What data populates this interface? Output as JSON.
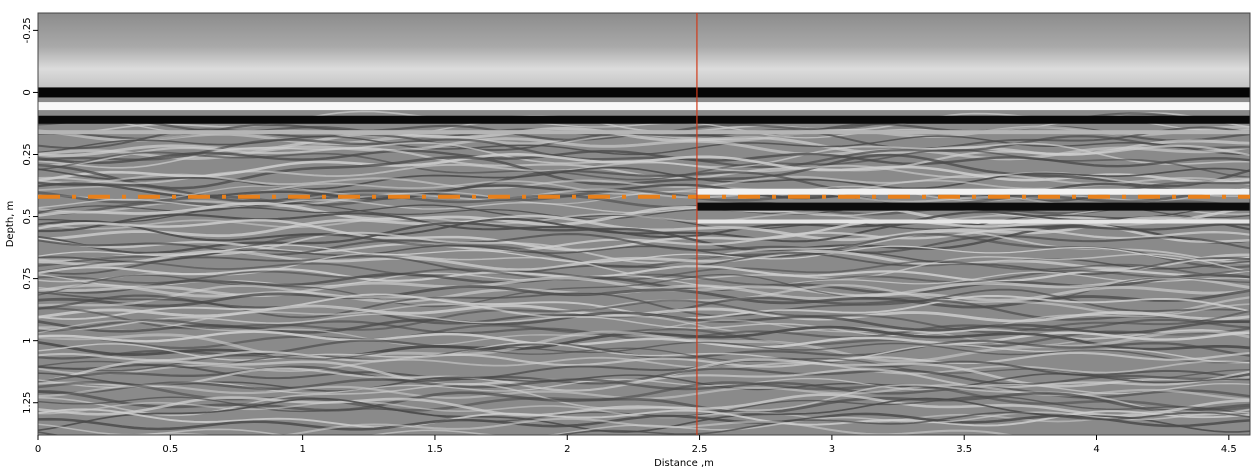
{
  "chart_data": {
    "type": "heatmap",
    "title": "",
    "xlabel": "Distance ,m",
    "ylabel": "Depth, m",
    "xlim": [
      0,
      4.58
    ],
    "ylim": [
      -0.32,
      1.38
    ],
    "y_inverted": true,
    "colormap": "grayscale",
    "x_ticks": [
      {
        "value": 0,
        "label": "0"
      },
      {
        "value": 0.5,
        "label": "0.5"
      },
      {
        "value": 1,
        "label": "1"
      },
      {
        "value": 1.5,
        "label": "1.5"
      },
      {
        "value": 2,
        "label": "2"
      },
      {
        "value": 2.5,
        "label": "2.5"
      },
      {
        "value": 3,
        "label": "3"
      },
      {
        "value": 3.5,
        "label": "3.5"
      },
      {
        "value": 4,
        "label": "4"
      },
      {
        "value": 4.5,
        "label": "4.5"
      }
    ],
    "y_ticks": [
      {
        "value": -0.25,
        "label": "-0.25"
      },
      {
        "value": 0,
        "label": "0"
      },
      {
        "value": 0.25,
        "label": "0.25"
      },
      {
        "value": 0.5,
        "label": "0.5"
      },
      {
        "value": 0.75,
        "label": "0.75"
      },
      {
        "value": 1,
        "label": "1"
      },
      {
        "value": 1.25,
        "label": "1.25"
      }
    ],
    "reflectors": [
      {
        "name": "surface-band-upper",
        "depth": 0.0,
        "tone": "black"
      },
      {
        "name": "surface-band-white",
        "depth": 0.05,
        "tone": "white"
      },
      {
        "name": "surface-band-lower",
        "depth": 0.1,
        "tone": "black"
      }
    ],
    "reference_lines": [
      {
        "orientation": "horizontal",
        "value": 0.42,
        "style": "dashed",
        "color": "#e8801a"
      },
      {
        "orientation": "vertical",
        "value": 2.49,
        "style": "solid",
        "color": "#d03b1a"
      }
    ]
  }
}
